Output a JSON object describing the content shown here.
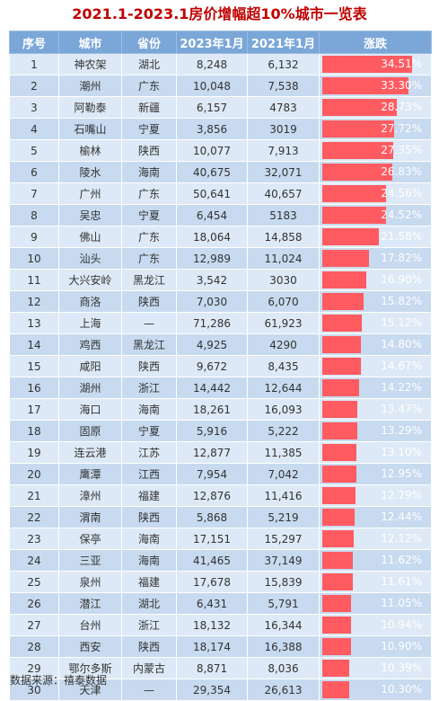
{
  "title": "2021.1-2023.1房价增幅超10%城市一览表",
  "source": "数据来源：禧泰数据",
  "headers": [
    "序号",
    "城市",
    "省份",
    "2023年1月",
    "2021年1月",
    "涨跌"
  ],
  "colors": {
    "header_bg": "#7aa7d8",
    "row_light": "#dde9f6",
    "row_dark": "#c7daef",
    "bar": "#ff5b61",
    "title": "#c00000"
  },
  "chart_data": {
    "type": "table",
    "columns": [
      "序号",
      "城市",
      "省份",
      "2023年1月",
      "2021年1月",
      "涨跌"
    ],
    "rows": [
      [
        "1",
        "神农架",
        "湖北",
        "8,248",
        "6,132",
        "34.51%"
      ],
      [
        "2",
        "潮州",
        "广东",
        "10,048",
        "7,538",
        "33.30%"
      ],
      [
        "3",
        "阿勒泰",
        "新疆",
        "6,157",
        "4783",
        "28.73%"
      ],
      [
        "4",
        "石嘴山",
        "宁夏",
        "3,856",
        "3019",
        "27.72%"
      ],
      [
        "5",
        "榆林",
        "陕西",
        "10,077",
        "7,913",
        "27.35%"
      ],
      [
        "6",
        "陵水",
        "海南",
        "40,675",
        "32,071",
        "26.83%"
      ],
      [
        "7",
        "广州",
        "广东",
        "50,641",
        "40,657",
        "24.56%"
      ],
      [
        "8",
        "吴忠",
        "宁夏",
        "6,454",
        "5183",
        "24.52%"
      ],
      [
        "9",
        "佛山",
        "广东",
        "18,064",
        "14,858",
        "21.58%"
      ],
      [
        "10",
        "汕头",
        "广东",
        "12,989",
        "11,024",
        "17.82%"
      ],
      [
        "11",
        "大兴安岭",
        "黑龙江",
        "3,542",
        "3030",
        "16.90%"
      ],
      [
        "12",
        "商洛",
        "陕西",
        "7,030",
        "6,070",
        "15.82%"
      ],
      [
        "13",
        "上海",
        "—",
        "71,286",
        "61,923",
        "15.12%"
      ],
      [
        "14",
        "鸡西",
        "黑龙江",
        "4,925",
        "4290",
        "14.80%"
      ],
      [
        "15",
        "咸阳",
        "陕西",
        "9,672",
        "8,435",
        "14.67%"
      ],
      [
        "16",
        "湖州",
        "浙江",
        "14,442",
        "12,644",
        "14.22%"
      ],
      [
        "17",
        "海口",
        "海南",
        "18,261",
        "16,093",
        "13.47%"
      ],
      [
        "18",
        "固原",
        "宁夏",
        "5,916",
        "5,222",
        "13.29%"
      ],
      [
        "19",
        "连云港",
        "江苏",
        "12,877",
        "11,385",
        "13.10%"
      ],
      [
        "20",
        "鹰潭",
        "江西",
        "7,954",
        "7,042",
        "12.95%"
      ],
      [
        "21",
        "漳州",
        "福建",
        "12,876",
        "11,416",
        "12.79%"
      ],
      [
        "22",
        "渭南",
        "陕西",
        "5,868",
        "5,219",
        "12.44%"
      ],
      [
        "23",
        "保亭",
        "海南",
        "17,151",
        "15,297",
        "12.12%"
      ],
      [
        "24",
        "三亚",
        "海南",
        "41,465",
        "37,149",
        "11.62%"
      ],
      [
        "25",
        "泉州",
        "福建",
        "17,678",
        "15,839",
        "11.61%"
      ],
      [
        "26",
        "潜江",
        "湖北",
        "6,431",
        "5,791",
        "11.05%"
      ],
      [
        "27",
        "台州",
        "浙江",
        "18,132",
        "16,344",
        "10.94%"
      ],
      [
        "28",
        "西安",
        "陕西",
        "18,174",
        "16,388",
        "10.90%"
      ],
      [
        "29",
        "鄂尔多斯",
        "内蒙古",
        "8,871",
        "8,036",
        "10.39%"
      ],
      [
        "30",
        "天津",
        "—",
        "29,354",
        "26,613",
        "10.30%"
      ]
    ],
    "bar_column": "涨跌",
    "bar_values": [
      34.51,
      33.3,
      28.73,
      27.72,
      27.35,
      26.83,
      24.56,
      24.52,
      21.58,
      17.82,
      16.9,
      15.82,
      15.12,
      14.8,
      14.67,
      14.22,
      13.47,
      13.29,
      13.1,
      12.95,
      12.79,
      12.44,
      12.12,
      11.62,
      11.61,
      11.05,
      10.94,
      10.9,
      10.39,
      10.3
    ],
    "bar_max": 34.51
  }
}
